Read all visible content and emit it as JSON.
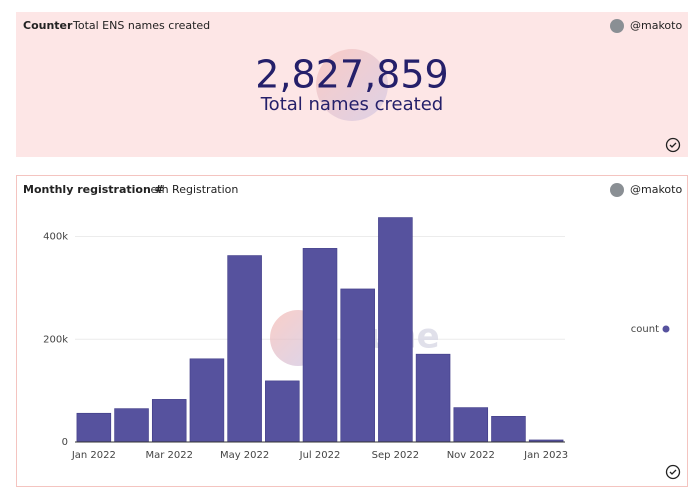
{
  "counter_panel": {
    "title": "Counter",
    "subtitle": "Total ENS names created",
    "author": "@makoto",
    "value": "2,827,859",
    "caption": "Total names created"
  },
  "chart_panel": {
    "title": "Monthly registration #",
    "subtitle": ".eth Registration",
    "author": "@makoto",
    "watermark": "Dune"
  },
  "chart_data": {
    "type": "bar",
    "categories": [
      "Jan 2022",
      null,
      "Mar 2022",
      null,
      "May 2022",
      null,
      "Jul 2022",
      null,
      "Sep 2022",
      null,
      "Nov 2022",
      null,
      "Jan 2023"
    ],
    "series": [
      {
        "name": "count",
        "color": "#56529e",
        "values": [
          56000,
          65000,
          83000,
          162000,
          363000,
          119000,
          377000,
          298000,
          437000,
          171000,
          67000,
          50000,
          4000
        ]
      }
    ],
    "ylim": [
      0,
      440000
    ],
    "yticks": [
      0,
      {
        "value": 200000,
        "label": "200k"
      },
      {
        "value": 400000,
        "label": "400k"
      }
    ],
    "grid": true,
    "legend": "right"
  }
}
